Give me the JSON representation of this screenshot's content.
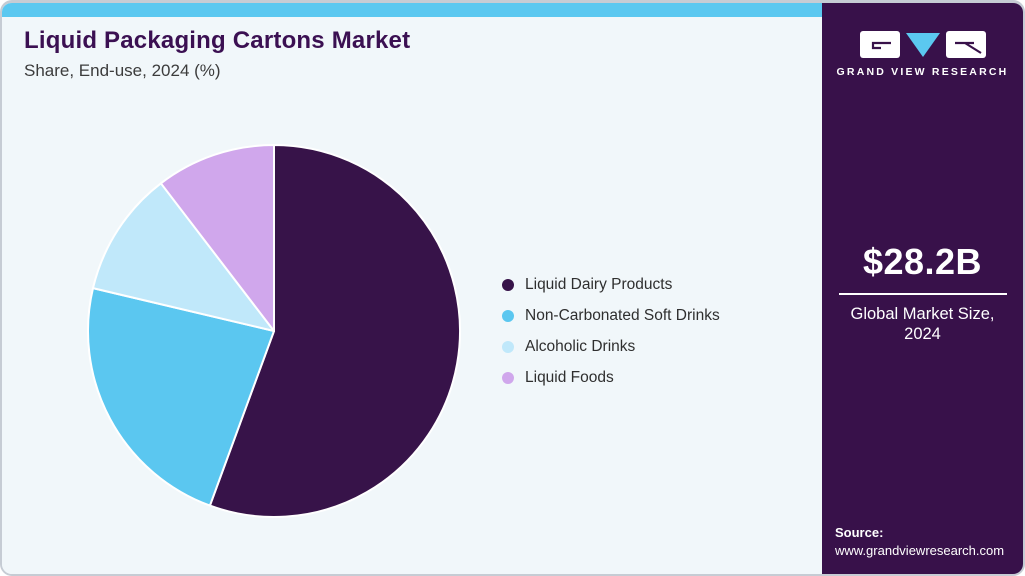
{
  "header": {
    "title": "Liquid Packaging Cartons Market",
    "subtitle": "Share, End-use, 2024 (%)"
  },
  "chart_data": {
    "type": "pie",
    "title": "Liquid Packaging Cartons Market Share, End-use, 2024 (%)",
    "categories": [
      "Liquid Dairy Products",
      "Non-Carbonated Soft Drinks",
      "Alcoholic Drinks",
      "Liquid Foods"
    ],
    "values": [
      55.6,
      23.1,
      10.9,
      10.4
    ],
    "unit": "%",
    "colors": [
      "#371349",
      "#5BC7F0",
      "#C0E8FA",
      "#D0A7EC"
    ],
    "start_angle_deg": 0,
    "direction": "clockwise",
    "legend_position": "right",
    "slice_labels_shown": false
  },
  "sidebar": {
    "brand": "GRAND VIEW RESEARCH",
    "market_size": {
      "value": "$28.2B",
      "label": "Global Market Size, 2024"
    },
    "source_label": "Source:",
    "source_url": "www.grandviewresearch.com",
    "background_color": "#38114A",
    "logo_accent_color": "#5BC8F0"
  },
  "theme": {
    "topbar_color": "#5BC8F0",
    "main_background": "#F1F7FA",
    "title_color": "#3B1052"
  }
}
